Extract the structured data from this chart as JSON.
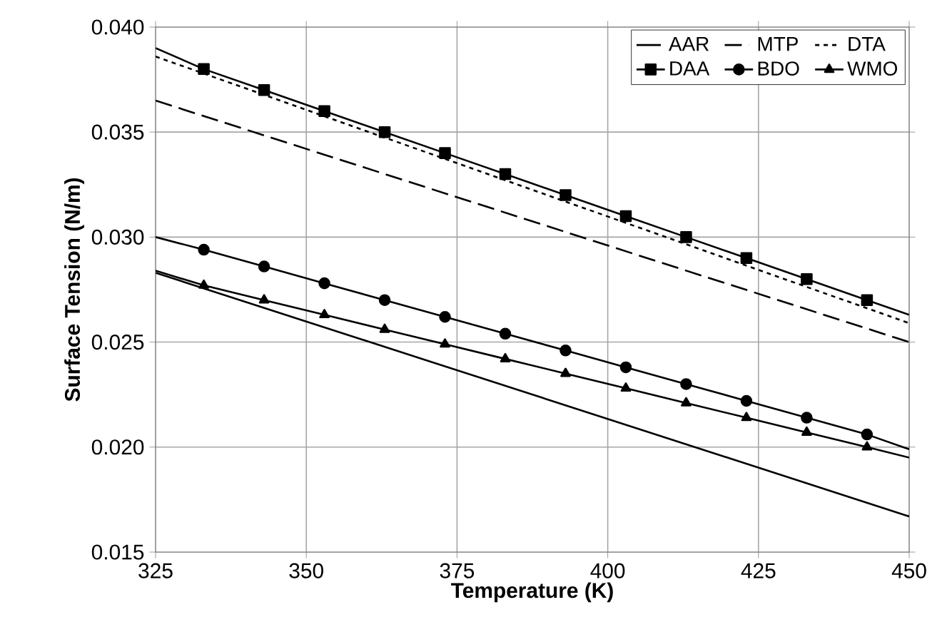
{
  "chart_data": {
    "type": "line",
    "xlabel": "Temperature (K)",
    "ylabel": "Surface Tension (N/m)",
    "xlim": [
      325,
      450
    ],
    "xticks": [
      325,
      350,
      375,
      400,
      425,
      450
    ],
    "ylim": [
      0.015,
      0.04
    ],
    "yticks": [
      {
        "value": 0.015,
        "label": "0.015"
      },
      {
        "value": 0.02,
        "label": "0.020"
      },
      {
        "value": 0.025,
        "label": "0.025"
      },
      {
        "value": 0.03,
        "label": "0.030"
      },
      {
        "value": 0.035,
        "label": "0.035"
      },
      {
        "value": 0.04,
        "label": "0.040"
      }
    ],
    "grid": true,
    "legend": "top right",
    "series": [
      {
        "name": "AAR",
        "color": "#000000",
        "line_style": "solid",
        "marker": "none",
        "x": [
          325,
          450
        ],
        "values": [
          0.0283,
          0.0167
        ]
      },
      {
        "name": "MTP",
        "color": "#000000",
        "line_style": "dashed",
        "marker": "none",
        "x": [
          325,
          450
        ],
        "values": [
          0.0365,
          0.025
        ]
      },
      {
        "name": "DTA",
        "color": "#000000",
        "line_style": "dotted",
        "marker": "none",
        "x": [
          325,
          450
        ],
        "values": [
          0.0386,
          0.0259
        ]
      },
      {
        "name": "DAA",
        "color": "#000000",
        "line_style": "solid",
        "marker": "square",
        "x": [
          325,
          333,
          343,
          353,
          363,
          373,
          383,
          393,
          403,
          413,
          423,
          433,
          443,
          450
        ],
        "values": [
          0.039,
          0.038,
          0.037,
          0.036,
          0.035,
          0.034,
          0.033,
          0.032,
          0.031,
          0.03,
          0.029,
          0.028,
          0.027,
          0.0263
        ]
      },
      {
        "name": "BDO",
        "color": "#000000",
        "line_style": "solid",
        "marker": "circle",
        "x": [
          325,
          333,
          343,
          353,
          363,
          373,
          383,
          393,
          403,
          413,
          423,
          433,
          443,
          450
        ],
        "values": [
          0.03,
          0.0294,
          0.0286,
          0.0278,
          0.027,
          0.0262,
          0.0254,
          0.0246,
          0.0238,
          0.023,
          0.0222,
          0.0214,
          0.0206,
          0.0199
        ]
      },
      {
        "name": "WMO",
        "color": "#000000",
        "line_style": "solid",
        "marker": "triangle",
        "x": [
          325,
          333,
          343,
          353,
          363,
          373,
          383,
          393,
          403,
          413,
          423,
          433,
          443,
          450
        ],
        "values": [
          0.0284,
          0.0277,
          0.027,
          0.0263,
          0.0256,
          0.0249,
          0.0242,
          0.0235,
          0.0228,
          0.0221,
          0.0214,
          0.0207,
          0.02,
          0.0195
        ]
      }
    ]
  }
}
